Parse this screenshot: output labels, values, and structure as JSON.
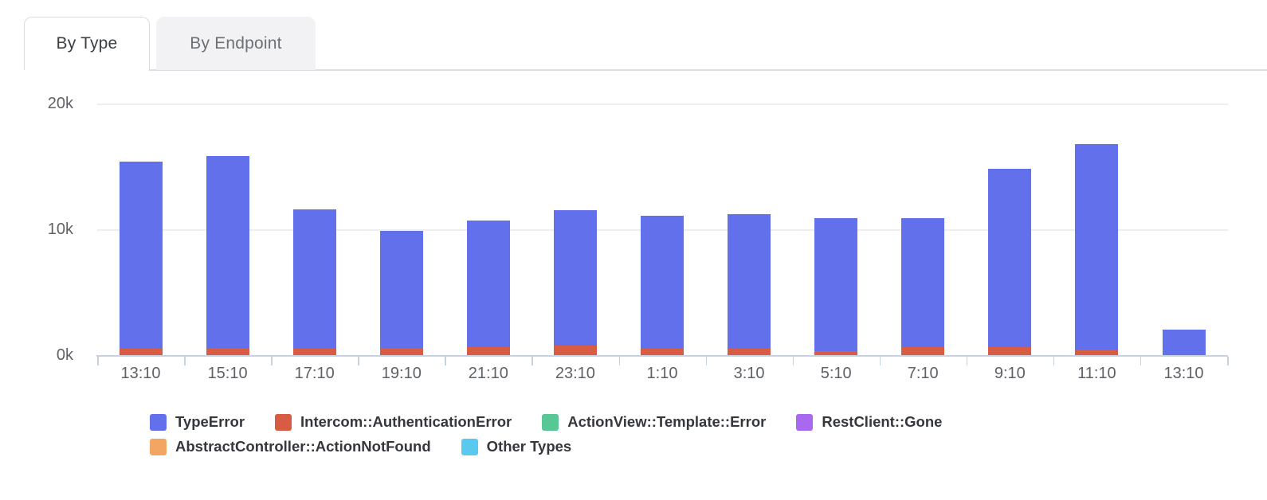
{
  "tabs": [
    {
      "label": "By Type",
      "active": true
    },
    {
      "label": "By Endpoint",
      "active": false
    }
  ],
  "colors": {
    "axis": "#c7d1e0",
    "grid": "#eeeef1",
    "tick_label": "#5e6166",
    "active_tab_text": "#3c3f44",
    "inactive_tab_text": "#6d7074",
    "inactive_tab_bg": "#f2f2f4"
  },
  "chart_data": {
    "type": "bar",
    "stacked": true,
    "title": "",
    "xlabel": "",
    "ylabel": "",
    "grid": "horizontal",
    "legend_position": "bottom",
    "x_categories": [
      "13:10",
      "15:10",
      "17:10",
      "19:10",
      "21:10",
      "23:10",
      "1:10",
      "3:10",
      "5:10",
      "7:10",
      "9:10",
      "11:10",
      "13:10"
    ],
    "y_ticks": [
      {
        "label": "0k",
        "value": 0
      },
      {
        "label": "10k",
        "value": 10000
      },
      {
        "label": "20k",
        "value": 20000
      }
    ],
    "ylim": [
      0,
      20000
    ],
    "series": [
      {
        "name": "TypeError",
        "color": "#6271EB",
        "values": [
          14900,
          15250,
          11100,
          9350,
          10100,
          10750,
          10600,
          10700,
          10600,
          10300,
          14200,
          16350,
          2000
        ]
      },
      {
        "name": "Intercom::AuthenticationError",
        "color": "#D85B44",
        "values": [
          500,
          550,
          500,
          550,
          600,
          750,
          500,
          500,
          300,
          600,
          600,
          450,
          0
        ]
      },
      {
        "name": "ActionView::Template::Error",
        "color": "#57C795",
        "values": [
          0,
          0,
          0,
          0,
          0,
          0,
          0,
          0,
          0,
          0,
          0,
          0,
          0
        ]
      },
      {
        "name": "RestClient::Gone",
        "color": "#A868F0",
        "values": [
          0,
          0,
          0,
          0,
          0,
          0,
          0,
          0,
          0,
          0,
          0,
          0,
          0
        ]
      },
      {
        "name": "AbstractController::ActionNotFound",
        "color": "#F2A661",
        "values": [
          0,
          0,
          0,
          0,
          0,
          0,
          0,
          0,
          0,
          0,
          0,
          0,
          0
        ]
      },
      {
        "name": "Other Types",
        "color": "#5BC8EF",
        "values": [
          0,
          0,
          0,
          0,
          0,
          0,
          0,
          0,
          0,
          0,
          0,
          0,
          0
        ]
      }
    ]
  }
}
